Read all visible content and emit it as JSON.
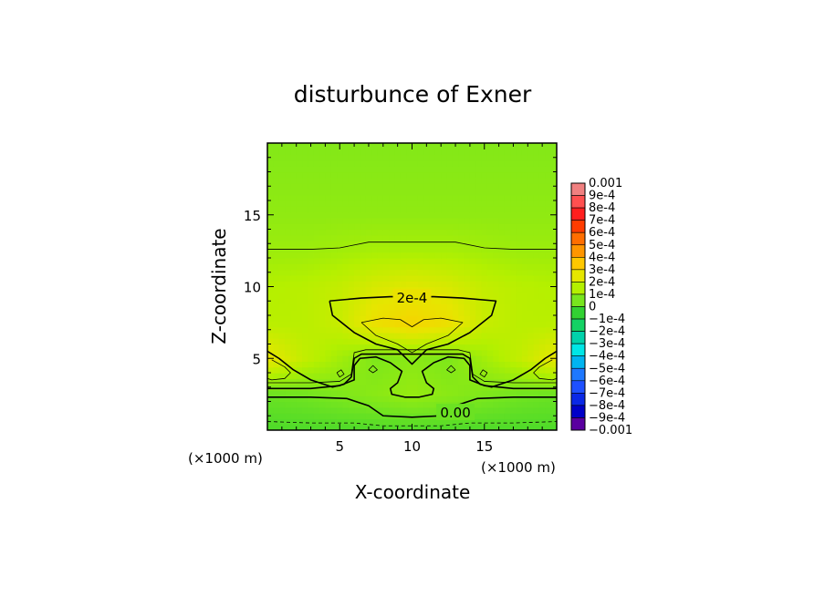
{
  "chart_data": {
    "type": "contour",
    "title": "disturbunce of Exner",
    "xlabel": "X-coordinate",
    "ylabel": "Z-coordinate",
    "x_unit": "(×1000 m)",
    "z_unit": "(×1000 m)",
    "xlim": [
      0,
      20
    ],
    "ylim": [
      0,
      20
    ],
    "x_ticks": [
      5,
      10,
      15
    ],
    "y_ticks": [
      5,
      10,
      15
    ],
    "contour_labels": [
      {
        "text": "2e-4",
        "x": 10.0,
        "z": 9.2
      },
      {
        "text": "0.00",
        "x": 13.0,
        "z": 1.2
      }
    ],
    "colorbar": {
      "labels": [
        "0.001",
        "9e-4",
        "8e-4",
        "7e-4",
        "6e-4",
        "5e-4",
        "4e-4",
        "3e-4",
        "2e-4",
        "1e-4",
        "0",
        "−1e-4",
        "−2e-4",
        "−3e-4",
        "−4e-4",
        "−5e-4",
        "−6e-4",
        "−7e-4",
        "−8e-4",
        "−9e-4",
        "−0.001"
      ],
      "colors": [
        "#f08080",
        "#ff5050",
        "#ff1e1e",
        "#ff3c00",
        "#ff6e00",
        "#ff9600",
        "#ffc800",
        "#e6e600",
        "#b4f000",
        "#78e61e",
        "#32d232",
        "#14d264",
        "#00d2aa",
        "#00e6e6",
        "#00b4f0",
        "#1e78ff",
        "#1e50ff",
        "#0a28e6",
        "#0000c8",
        "#5a00a0"
      ]
    },
    "field": {
      "grid_x": [
        0.0,
        2.5,
        5.0,
        7.5,
        10.0,
        12.5,
        15.0,
        17.5,
        20.0
      ],
      "grid_z": [
        0.0,
        2.5,
        5.0,
        7.5,
        10.0,
        12.5,
        15.0,
        17.5,
        20.0
      ],
      "values": [
        [
          -1e-05,
          -1e-05,
          -1e-05,
          -1e-05,
          -1e-05,
          -1e-05,
          -1e-05,
          -1e-05,
          -1e-05
        ],
        [
          3e-05,
          4e-05,
          6e-05,
          8e-05,
          0.0001,
          8e-05,
          6e-05,
          4e-05,
          3e-05
        ],
        [
          0.00026,
          0.00018,
          0.00012,
          6e-05,
          8e-05,
          6e-05,
          0.00012,
          0.00018,
          0.00026
        ],
        [
          0.00016,
          0.00016,
          0.00019,
          0.00028,
          0.00031,
          0.00028,
          0.00019,
          0.00016,
          0.00016
        ],
        [
          0.00015,
          0.00016,
          0.00018,
          0.00022,
          0.00024,
          0.00022,
          0.00018,
          0.00016,
          0.00015
        ],
        [
          0.00011,
          0.00011,
          0.00012,
          0.00013,
          0.00013,
          0.00013,
          0.00012,
          0.00011,
          0.00011
        ],
        [
          9e-05,
          9e-05,
          9e-05,
          9e-05,
          9e-05,
          9e-05,
          9e-05,
          9e-05,
          9e-05
        ],
        [
          8e-05,
          8e-05,
          8e-05,
          8e-05,
          8e-05,
          8e-05,
          8e-05,
          8e-05,
          8e-05
        ],
        [
          7e-05,
          7e-05,
          7e-05,
          7e-05,
          7e-05,
          7e-05,
          7e-05,
          7e-05,
          7e-05
        ]
      ]
    },
    "contours": [
      {
        "level": 0.0002,
        "style": "thick",
        "points": [
          [
            4.3,
            9.0
          ],
          [
            6.5,
            9.2
          ],
          [
            8.5,
            9.3
          ],
          [
            11.5,
            9.3
          ],
          [
            13.5,
            9.2
          ],
          [
            15.8,
            9.0
          ],
          [
            15.5,
            8.0
          ],
          [
            14.0,
            6.8
          ],
          [
            12.5,
            6.0
          ],
          [
            11.0,
            5.6
          ],
          [
            10.0,
            4.6
          ],
          [
            9.0,
            5.6
          ],
          [
            7.5,
            6.0
          ],
          [
            6.0,
            6.8
          ],
          [
            4.5,
            8.0
          ],
          [
            4.3,
            9.0
          ]
        ]
      },
      {
        "level": 0.0003,
        "style": "thin",
        "points": [
          [
            6.5,
            7.5
          ],
          [
            8.0,
            7.8
          ],
          [
            9.2,
            7.7
          ],
          [
            10.0,
            7.2
          ],
          [
            10.8,
            7.7
          ],
          [
            12.0,
            7.8
          ],
          [
            13.5,
            7.5
          ],
          [
            12.5,
            6.6
          ],
          [
            11.0,
            6.0
          ],
          [
            10.0,
            5.4
          ],
          [
            9.0,
            6.0
          ],
          [
            7.5,
            6.6
          ],
          [
            6.5,
            7.5
          ]
        ]
      },
      {
        "level": 0.0001,
        "style": "thin",
        "points": [
          [
            0.0,
            12.6
          ],
          [
            3.0,
            12.6
          ],
          [
            5.0,
            12.7
          ],
          [
            7.0,
            13.1
          ],
          [
            10.0,
            13.1
          ],
          [
            13.0,
            13.1
          ],
          [
            15.0,
            12.7
          ],
          [
            17.0,
            12.6
          ],
          [
            20.0,
            12.6
          ]
        ]
      },
      {
        "level": 0.0002,
        "style": "thick",
        "points": [
          [
            0.0,
            5.5
          ],
          [
            0.8,
            5.0
          ],
          [
            1.8,
            4.2
          ],
          [
            3.0,
            3.5
          ],
          [
            4.5,
            3.0
          ],
          [
            5.3,
            3.2
          ],
          [
            5.8,
            3.7
          ],
          [
            6.0,
            5.0
          ],
          [
            6.5,
            5.3
          ],
          [
            9.0,
            5.3
          ],
          [
            11.0,
            5.3
          ],
          [
            13.5,
            5.3
          ],
          [
            14.0,
            5.0
          ],
          [
            14.2,
            3.7
          ],
          [
            14.7,
            3.2
          ],
          [
            15.5,
            3.0
          ],
          [
            17.0,
            3.5
          ],
          [
            18.2,
            4.2
          ],
          [
            19.2,
            5.0
          ],
          [
            20.0,
            5.5
          ]
        ]
      },
      {
        "level": 0.0002,
        "style": "thick",
        "points": [
          [
            0.0,
            2.9
          ],
          [
            3.0,
            2.9
          ],
          [
            5.0,
            3.1
          ],
          [
            6.0,
            3.5
          ],
          [
            6.0,
            4.5
          ],
          [
            6.4,
            5.0
          ],
          [
            7.5,
            5.1
          ],
          [
            8.5,
            4.7
          ],
          [
            9.3,
            4.1
          ],
          [
            9.0,
            3.3
          ],
          [
            8.5,
            2.9
          ],
          [
            8.6,
            2.5
          ],
          [
            9.5,
            2.3
          ],
          [
            10.5,
            2.3
          ],
          [
            11.4,
            2.5
          ],
          [
            11.5,
            2.9
          ],
          [
            11.0,
            3.3
          ],
          [
            10.7,
            4.1
          ],
          [
            11.5,
            4.7
          ],
          [
            12.5,
            5.1
          ],
          [
            13.6,
            5.0
          ],
          [
            14.0,
            4.5
          ],
          [
            14.0,
            3.5
          ],
          [
            15.0,
            3.1
          ],
          [
            17.0,
            2.9
          ],
          [
            20.0,
            2.9
          ]
        ]
      },
      {
        "level": 0.0002,
        "style": "thin",
        "points": [
          [
            0.0,
            3.3
          ],
          [
            3.0,
            3.3
          ],
          [
            5.0,
            3.4
          ],
          [
            5.8,
            3.9
          ],
          [
            6.0,
            5.4
          ],
          [
            6.8,
            5.6
          ],
          [
            9.0,
            5.6
          ],
          [
            11.0,
            5.6
          ],
          [
            13.2,
            5.6
          ],
          [
            14.0,
            5.4
          ],
          [
            14.2,
            3.9
          ],
          [
            15.0,
            3.4
          ],
          [
            17.0,
            3.3
          ],
          [
            20.0,
            3.3
          ]
        ]
      },
      {
        "level": 0.0,
        "style": "thick",
        "points": [
          [
            0.0,
            2.3
          ],
          [
            3.0,
            2.3
          ],
          [
            5.5,
            2.2
          ],
          [
            7.0,
            1.7
          ],
          [
            8.0,
            1.0
          ],
          [
            10.0,
            0.9
          ],
          [
            12.0,
            1.0
          ],
          [
            13.0,
            1.7
          ],
          [
            14.5,
            2.2
          ],
          [
            17.0,
            2.3
          ],
          [
            20.0,
            2.3
          ]
        ]
      },
      {
        "level": -1e-05,
        "style": "dashed",
        "points": [
          [
            0.0,
            0.6
          ],
          [
            3.0,
            0.5
          ],
          [
            6.0,
            0.5
          ],
          [
            8.0,
            0.3
          ],
          [
            12.0,
            0.3
          ],
          [
            14.0,
            0.5
          ],
          [
            17.0,
            0.5
          ],
          [
            20.0,
            0.6
          ]
        ]
      },
      {
        "level": 0.0003,
        "style": "thin",
        "points": [
          [
            0.3,
            4.9
          ],
          [
            1.2,
            4.4
          ],
          [
            1.6,
            4.0
          ],
          [
            1.2,
            3.6
          ],
          [
            0.3,
            3.5
          ],
          [
            0.0,
            3.6
          ]
        ]
      },
      {
        "level": 0.0003,
        "style": "thin",
        "points": [
          [
            19.7,
            4.9
          ],
          [
            18.8,
            4.4
          ],
          [
            18.4,
            4.0
          ],
          [
            18.8,
            3.6
          ],
          [
            19.7,
            3.5
          ],
          [
            20.0,
            3.6
          ]
        ]
      },
      {
        "level": 0.0003,
        "style": "thin",
        "points": [
          [
            4.8,
            4.0
          ],
          [
            5.1,
            4.2
          ],
          [
            5.3,
            3.9
          ],
          [
            5.0,
            3.7
          ],
          [
            4.8,
            4.0
          ]
        ]
      },
      {
        "level": 0.0003,
        "style": "thin",
        "points": [
          [
            15.2,
            4.0
          ],
          [
            14.9,
            4.2
          ],
          [
            14.7,
            3.9
          ],
          [
            15.0,
            3.7
          ],
          [
            15.2,
            4.0
          ]
        ]
      },
      {
        "level": 0.0003,
        "style": "thin",
        "points": [
          [
            7.0,
            4.2
          ],
          [
            7.3,
            4.5
          ],
          [
            7.6,
            4.2
          ],
          [
            7.3,
            4.0
          ],
          [
            7.0,
            4.2
          ]
        ]
      },
      {
        "level": 0.0003,
        "style": "thin",
        "points": [
          [
            13.0,
            4.2
          ],
          [
            12.7,
            4.5
          ],
          [
            12.4,
            4.2
          ],
          [
            12.7,
            4.0
          ],
          [
            13.0,
            4.2
          ]
        ]
      }
    ]
  }
}
